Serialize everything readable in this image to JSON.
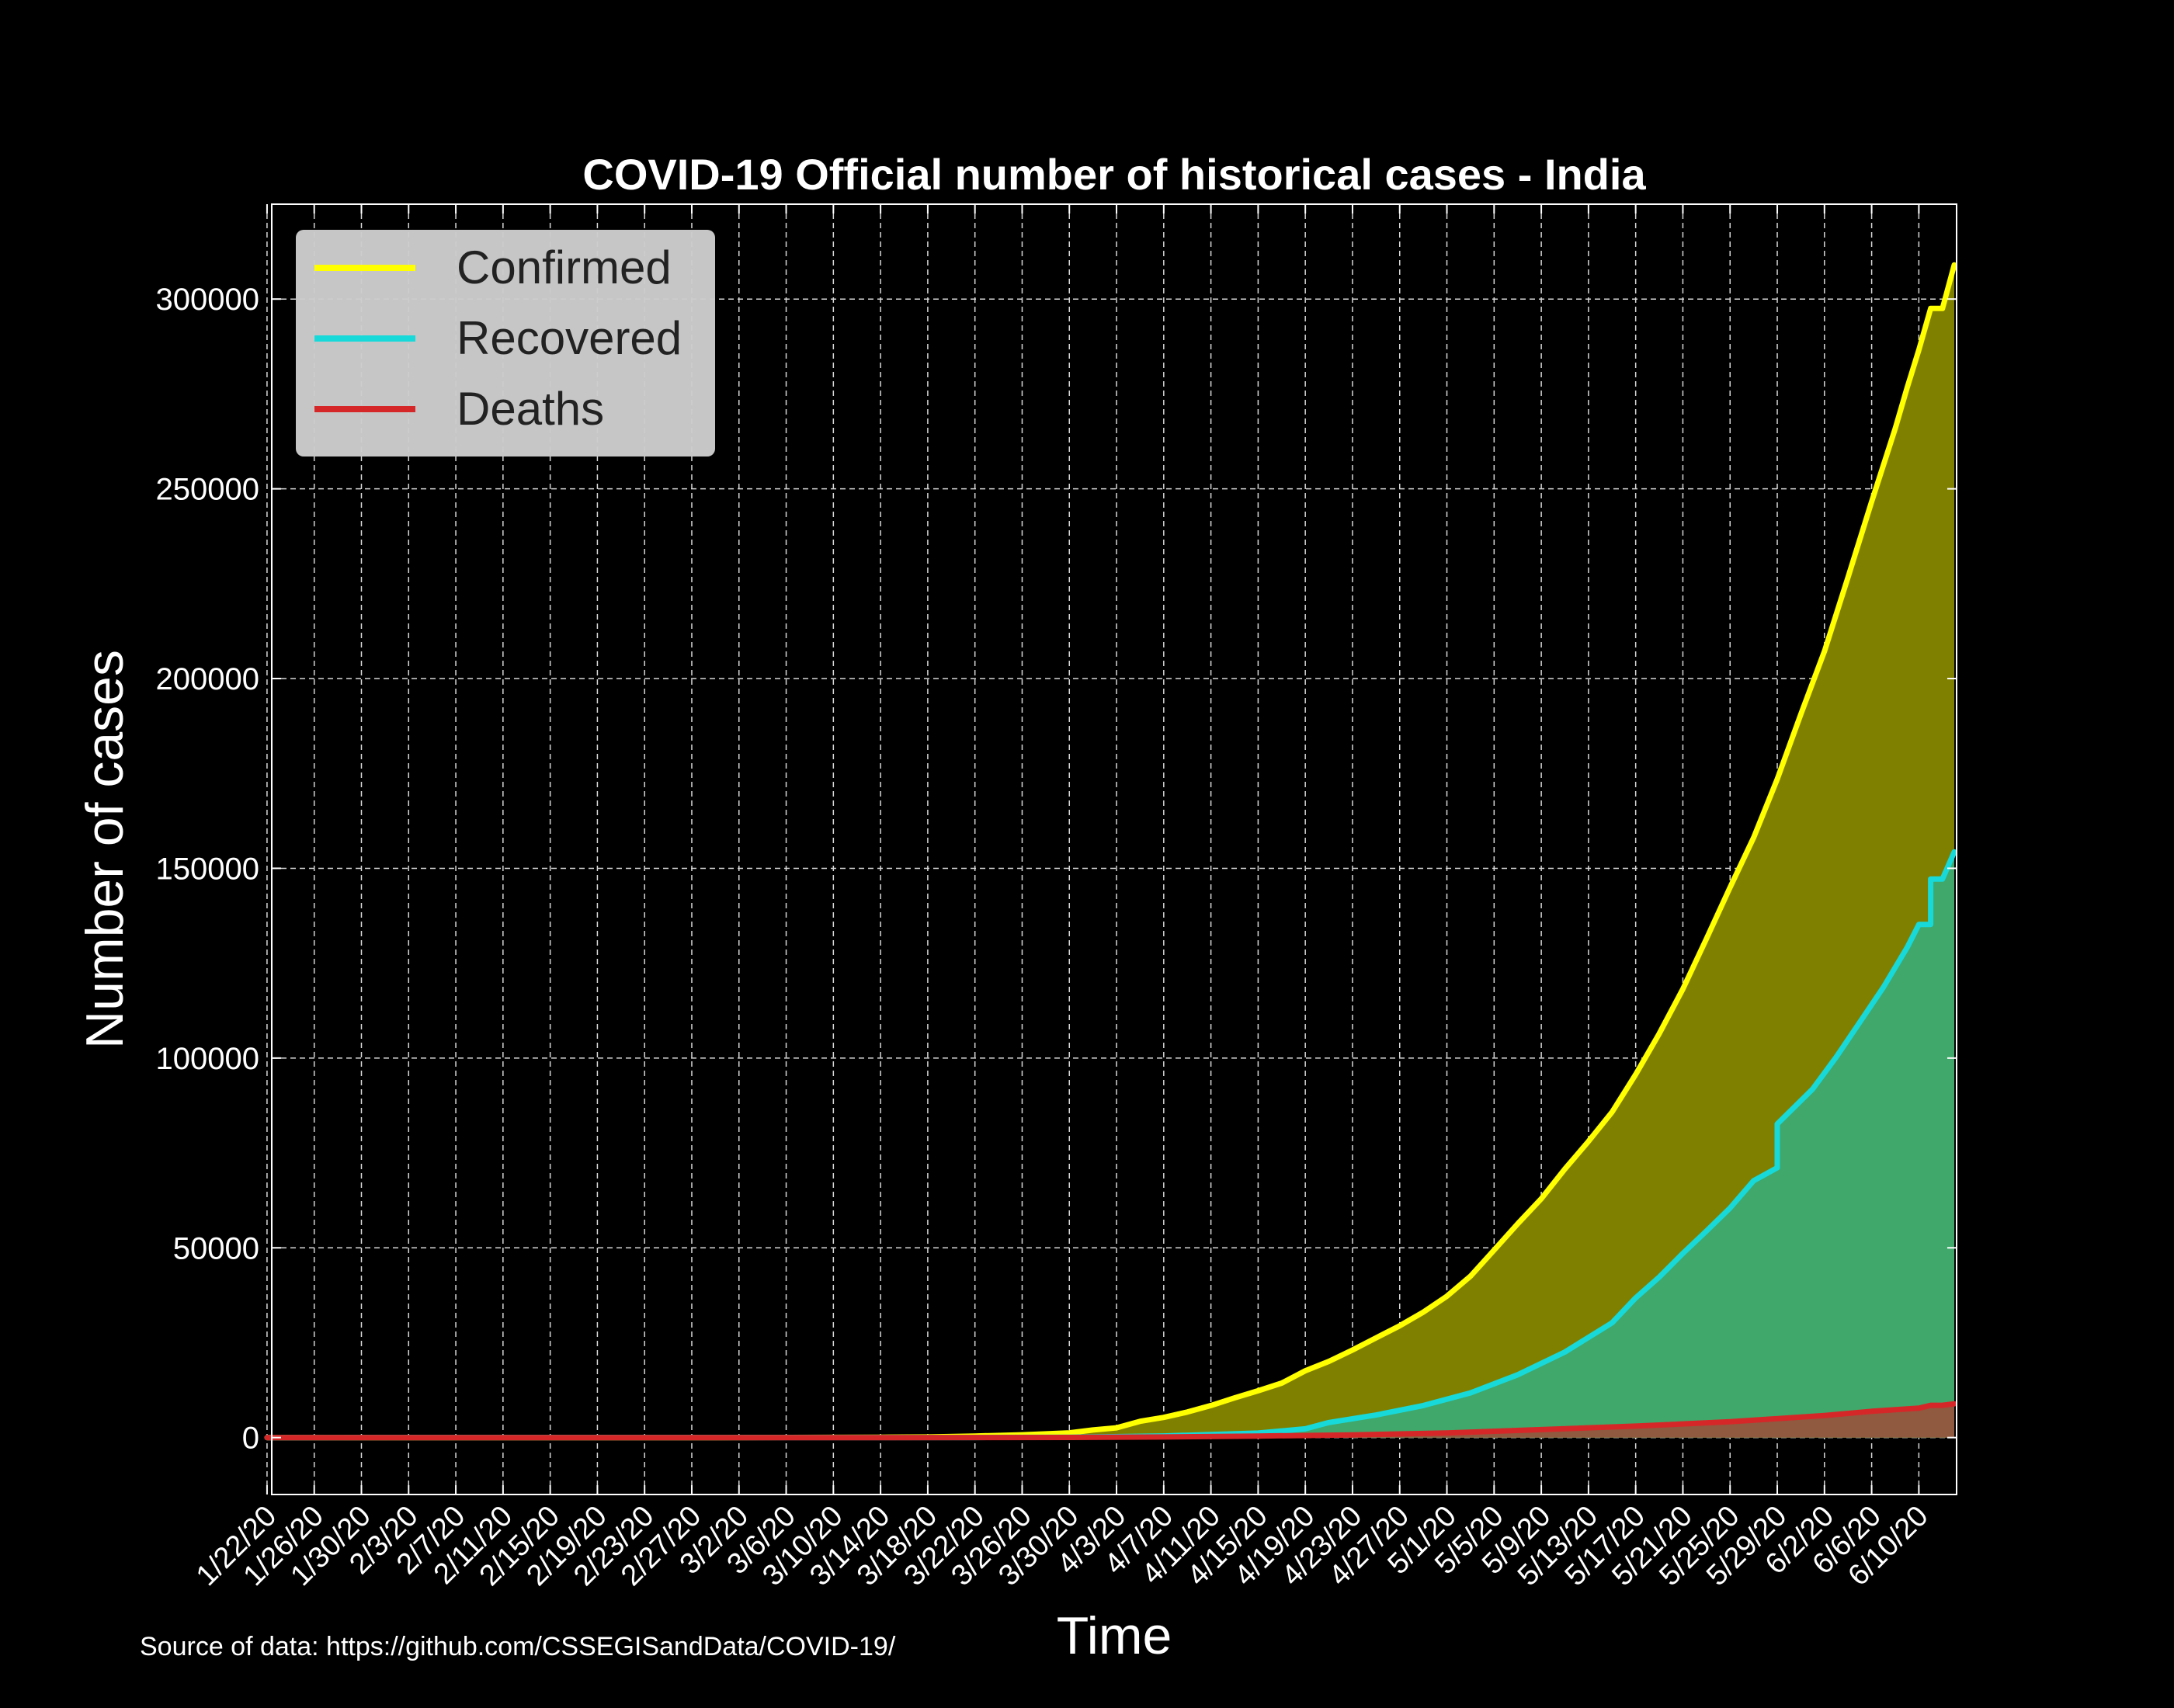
{
  "chart_data": {
    "type": "area",
    "title": "COVID-19 Official number of historical cases - India",
    "xlabel": "Time",
    "ylabel": "Number of cases",
    "ylim": [
      -15000,
      325000
    ],
    "yticks": [
      0,
      50000,
      100000,
      150000,
      200000,
      250000,
      300000
    ],
    "x_start": "1/22/20",
    "x_end": "6/10/20",
    "xtick_labels": [
      "1/22/20",
      "1/26/20",
      "1/30/20",
      "2/3/20",
      "2/7/20",
      "2/11/20",
      "2/15/20",
      "2/19/20",
      "2/23/20",
      "2/27/20",
      "3/2/20",
      "3/6/20",
      "3/10/20",
      "3/14/20",
      "3/18/20",
      "3/22/20",
      "3/26/20",
      "3/30/20",
      "4/3/20",
      "4/7/20",
      "4/11/20",
      "4/15/20",
      "4/19/20",
      "4/23/20",
      "4/27/20",
      "5/1/20",
      "5/5/20",
      "5/9/20",
      "5/13/20",
      "5/17/20",
      "5/21/20",
      "5/25/20",
      "5/29/20",
      "6/2/20",
      "6/6/20",
      "6/10/20"
    ],
    "grid": true,
    "legend_position": "top-left",
    "series": [
      {
        "name": "Confirmed",
        "line_color": "#ffff00",
        "fill_color": "#808000",
        "points": [
          [
            "1/22/20",
            0
          ],
          [
            "2/29/20",
            3
          ],
          [
            "3/3/20",
            6
          ],
          [
            "3/10/20",
            62
          ],
          [
            "3/14/20",
            102
          ],
          [
            "3/18/20",
            156
          ],
          [
            "3/22/20",
            396
          ],
          [
            "3/26/20",
            724
          ],
          [
            "3/30/20",
            1251
          ],
          [
            "4/1/20",
            1998
          ],
          [
            "4/3/20",
            2567
          ],
          [
            "4/5/20",
            4288
          ],
          [
            "4/7/20",
            5311
          ],
          [
            "4/9/20",
            6725
          ],
          [
            "4/11/20",
            8446
          ],
          [
            "4/13/20",
            10453
          ],
          [
            "4/15/20",
            12322
          ],
          [
            "4/17/20",
            14352
          ],
          [
            "4/19/20",
            17615
          ],
          [
            "4/21/20",
            20080
          ],
          [
            "4/23/20",
            23077
          ],
          [
            "4/25/20",
            26283
          ],
          [
            "4/27/20",
            29451
          ],
          [
            "4/29/20",
            33062
          ],
          [
            "5/1/20",
            37257
          ],
          [
            "5/3/20",
            42533
          ],
          [
            "5/5/20",
            49400
          ],
          [
            "5/7/20",
            56342
          ],
          [
            "5/9/20",
            62939
          ],
          [
            "5/11/20",
            70768
          ],
          [
            "5/13/20",
            78055
          ],
          [
            "5/15/20",
            85784
          ],
          [
            "5/17/20",
            95698
          ],
          [
            "5/19/20",
            106475
          ],
          [
            "5/21/20",
            118226
          ],
          [
            "5/23/20",
            131423
          ],
          [
            "5/25/20",
            144950
          ],
          [
            "5/27/20",
            158086
          ],
          [
            "5/29/20",
            173491
          ],
          [
            "5/31/20",
            190609
          ],
          [
            "6/2/20",
            207191
          ],
          [
            "6/4/20",
            226713
          ],
          [
            "6/6/20",
            246622
          ],
          [
            "6/8/20",
            265928
          ],
          [
            "6/9/20",
            276583
          ],
          [
            "6/10/20",
            286605
          ],
          [
            "6/11/20",
            297535
          ],
          [
            "6/12/20",
            297535
          ],
          [
            "6/13/20",
            308993
          ]
        ]
      },
      {
        "name": "Recovered",
        "line_color": "#17d9d9",
        "fill_color": "#40a86a",
        "points": [
          [
            "1/22/20",
            0
          ],
          [
            "3/14/20",
            10
          ],
          [
            "3/22/20",
            23
          ],
          [
            "3/30/20",
            102
          ],
          [
            "4/7/20",
            421
          ],
          [
            "4/15/20",
            1190
          ],
          [
            "4/19/20",
            2302
          ],
          [
            "4/21/20",
            3960
          ],
          [
            "4/25/20",
            5939
          ],
          [
            "4/29/20",
            8437
          ],
          [
            "5/3/20",
            11775
          ],
          [
            "5/7/20",
            16540
          ],
          [
            "5/11/20",
            22549
          ],
          [
            "5/15/20",
            30258
          ],
          [
            "5/17/20",
            36824
          ],
          [
            "5/19/20",
            42298
          ],
          [
            "5/21/20",
            48534
          ],
          [
            "5/23/20",
            54440
          ],
          [
            "5/25/20",
            60491
          ],
          [
            "5/27/20",
            67692
          ],
          [
            "5/29/20",
            71106
          ],
          [
            "5/29/20",
            82627
          ],
          [
            "6/1/20",
            91852
          ],
          [
            "6/3/20",
            100285
          ],
          [
            "6/5/20",
            109462
          ],
          [
            "6/7/20",
            118695
          ],
          [
            "6/9/20",
            129095
          ],
          [
            "6/10/20",
            135206
          ],
          [
            "6/11/20",
            135206
          ],
          [
            "6/11/20",
            147195
          ],
          [
            "6/12/20",
            147195
          ],
          [
            "6/13/20",
            154330
          ]
        ]
      },
      {
        "name": "Deaths",
        "line_color": "#d62728",
        "fill_color": "#8f5a40",
        "points": [
          [
            "1/22/20",
            0
          ],
          [
            "3/14/20",
            2
          ],
          [
            "3/22/20",
            7
          ],
          [
            "3/30/20",
            32
          ],
          [
            "4/7/20",
            169
          ],
          [
            "4/15/20",
            405
          ],
          [
            "4/23/20",
            721
          ],
          [
            "5/1/20",
            1223
          ],
          [
            "5/9/20",
            2109
          ],
          [
            "5/17/20",
            3025
          ],
          [
            "5/25/20",
            4172
          ],
          [
            "6/2/20",
            5829
          ],
          [
            "6/6/20",
            6929
          ],
          [
            "6/10/20",
            7745
          ],
          [
            "6/11/20",
            8498
          ],
          [
            "6/12/20",
            8498
          ],
          [
            "6/13/20",
            8884
          ]
        ]
      }
    ]
  },
  "source_note": "Source of data: https://github.com/CSSEGISandData/COVID-19/"
}
